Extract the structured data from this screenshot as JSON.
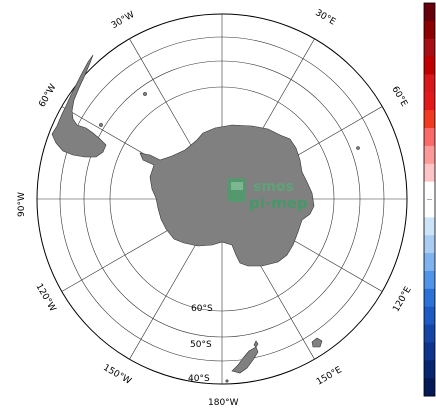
{
  "map": {
    "projection": "south-polar-stereographic",
    "longitude_labels": [
      "30°W",
      "30°E",
      "60°W",
      "60°E",
      "90°W",
      "120°W",
      "120°E",
      "150°W",
      "150°E",
      "180°W"
    ],
    "latitude_labels": [
      "60°S",
      "50°S",
      "40°S"
    ],
    "land_color": "#808080",
    "ocean_color": "#ffffff"
  },
  "watermark": {
    "line1": "smos",
    "line2": "pi-mep",
    "color": "#3f9a66"
  },
  "colorbar": {
    "orientation": "vertical",
    "colors": [
      "#67000d",
      "#8b0000",
      "#a50f15",
      "#c00000",
      "#d7191c",
      "#e31a1c",
      "#f03b20",
      "#fb6a6a",
      "#fc9a9a",
      "#fdc5c5",
      "#ffffff",
      "#ffffff",
      "#cde3f7",
      "#a9cdf2",
      "#7fb3ee",
      "#4f94e8",
      "#2b72d6",
      "#1f5ac0",
      "#1546a6",
      "#0d358d",
      "#082570",
      "#051a55"
    ]
  }
}
